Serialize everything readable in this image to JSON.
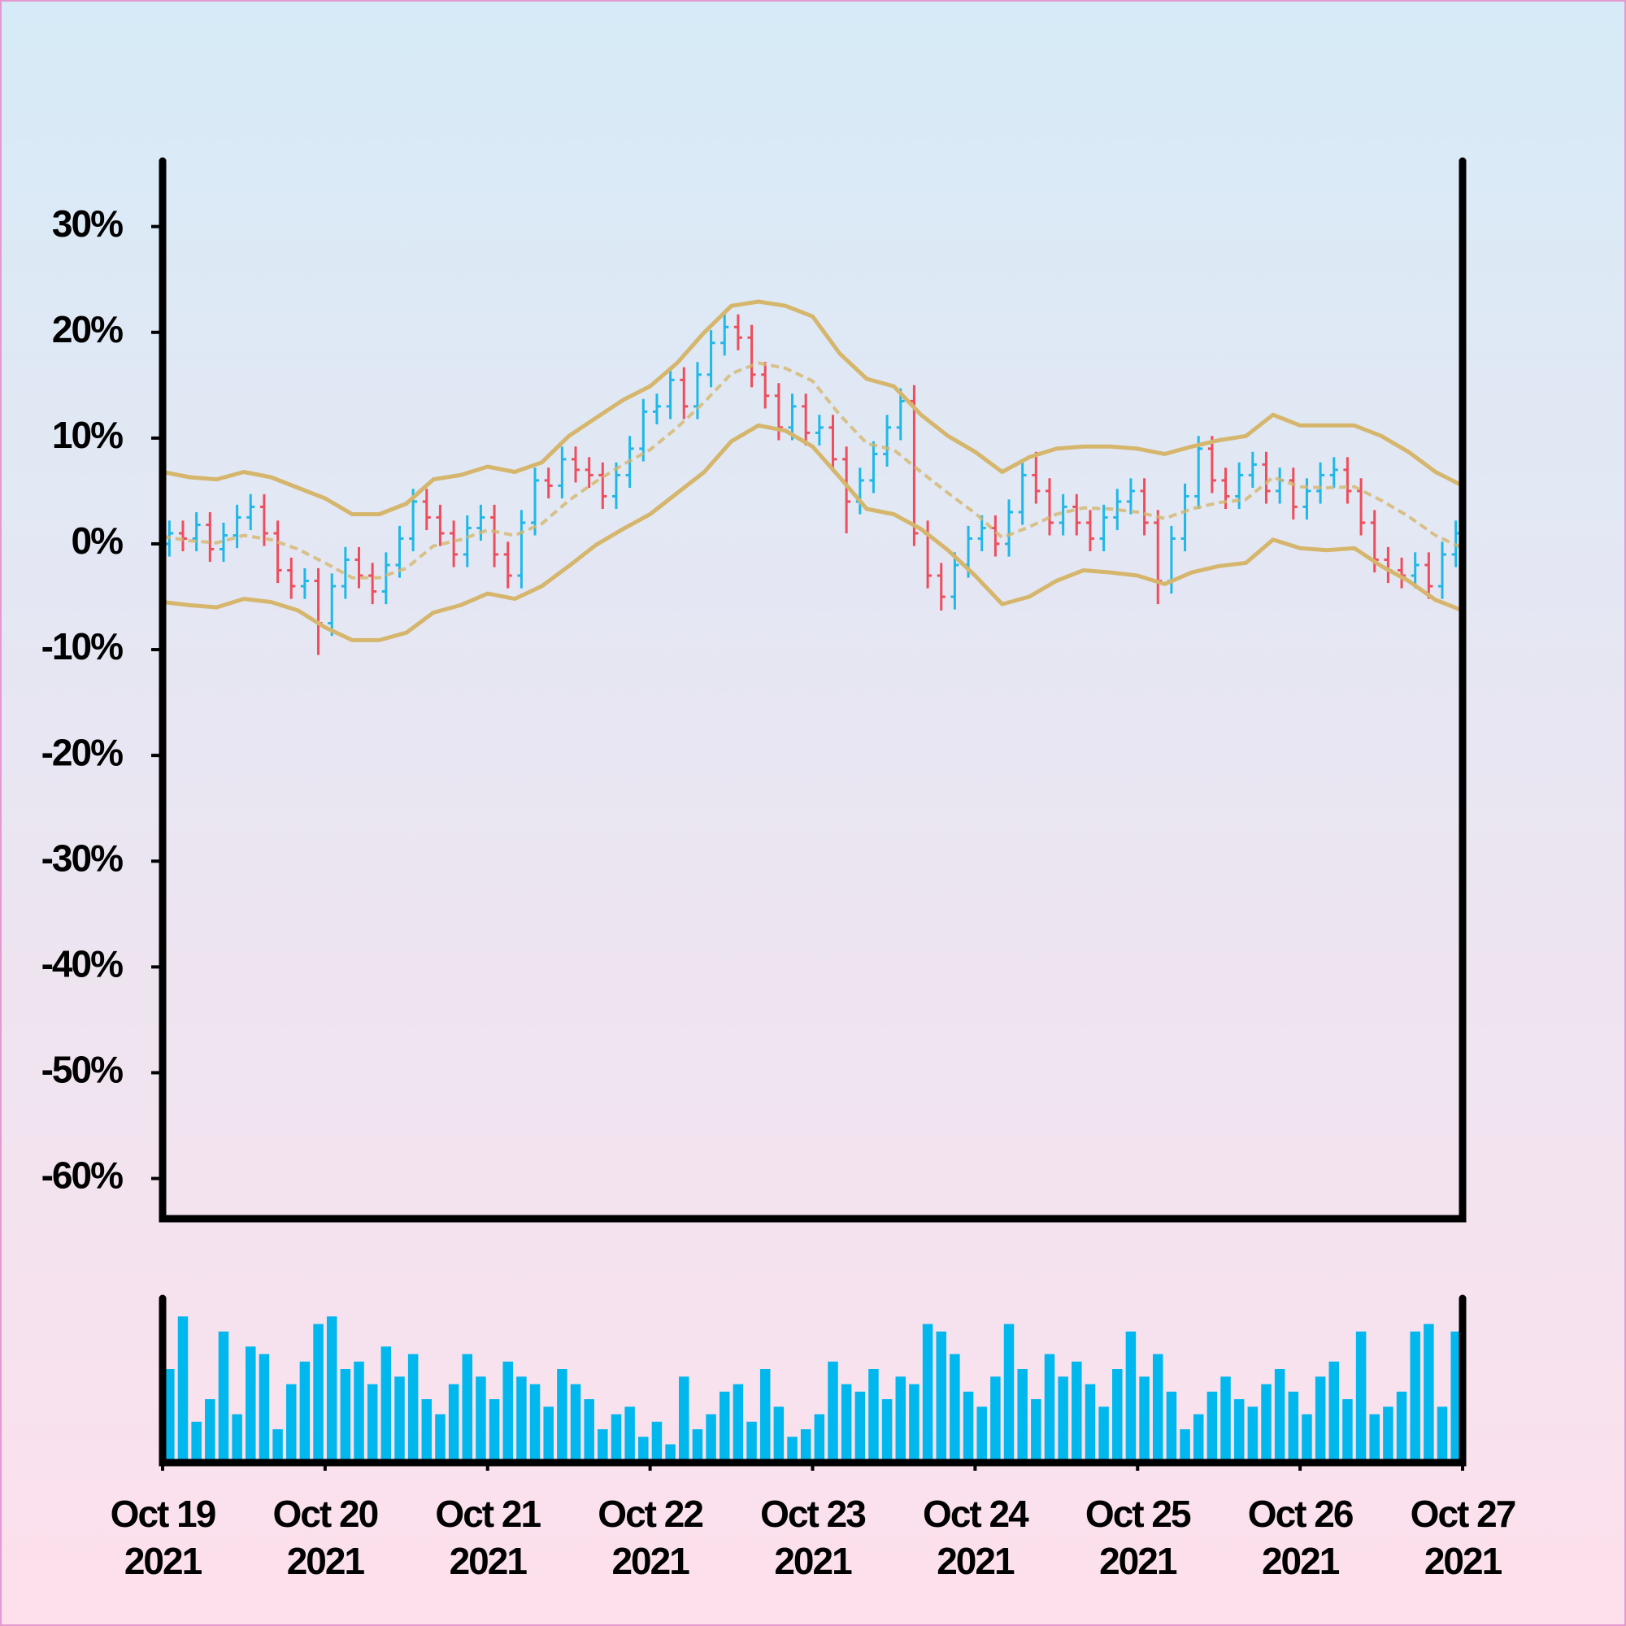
{
  "chart_data": {
    "type": "ohlc",
    "x": [
      "2021-10-19 01:00",
      "2021-10-19 03:00",
      "2021-10-19 05:00",
      "2021-10-19 07:00",
      "2021-10-19 09:00",
      "2021-10-19 11:00",
      "2021-10-19 13:00",
      "2021-10-19 15:00",
      "2021-10-19 17:00",
      "2021-10-19 19:00",
      "2021-10-19 21:00",
      "2021-10-19 23:00",
      "2021-10-20 01:00",
      "2021-10-20 03:00",
      "2021-10-20 05:00",
      "2021-10-20 07:00",
      "2021-10-20 09:00",
      "2021-10-20 11:00",
      "2021-10-20 13:00",
      "2021-10-20 15:00",
      "2021-10-20 17:00",
      "2021-10-20 19:00",
      "2021-10-20 21:00",
      "2021-10-20 23:00",
      "2021-10-21 01:00",
      "2021-10-21 03:00",
      "2021-10-21 05:00",
      "2021-10-21 07:00",
      "2021-10-21 09:00",
      "2021-10-21 11:00",
      "2021-10-21 13:00",
      "2021-10-21 15:00",
      "2021-10-21 17:00",
      "2021-10-21 19:00",
      "2021-10-21 21:00",
      "2021-10-21 23:00",
      "2021-10-22 01:00",
      "2021-10-22 03:00",
      "2021-10-22 05:00",
      "2021-10-22 07:00",
      "2021-10-22 09:00",
      "2021-10-22 11:00",
      "2021-10-22 13:00",
      "2021-10-22 15:00",
      "2021-10-22 17:00",
      "2021-10-22 19:00",
      "2021-10-22 21:00",
      "2021-10-22 23:00",
      "2021-10-23 01:00",
      "2021-10-23 03:00",
      "2021-10-23 05:00",
      "2021-10-23 07:00",
      "2021-10-23 09:00",
      "2021-10-23 11:00",
      "2021-10-23 13:00",
      "2021-10-23 15:00",
      "2021-10-23 17:00",
      "2021-10-23 19:00",
      "2021-10-23 21:00",
      "2021-10-23 23:00",
      "2021-10-24 01:00",
      "2021-10-24 03:00",
      "2021-10-24 05:00",
      "2021-10-24 07:00",
      "2021-10-24 09:00",
      "2021-10-24 11:00",
      "2021-10-24 13:00",
      "2021-10-24 15:00",
      "2021-10-24 17:00",
      "2021-10-24 19:00",
      "2021-10-24 21:00",
      "2021-10-24 23:00",
      "2021-10-25 01:00",
      "2021-10-25 03:00",
      "2021-10-25 05:00",
      "2021-10-25 07:00",
      "2021-10-25 09:00",
      "2021-10-25 11:00",
      "2021-10-25 13:00",
      "2021-10-25 15:00",
      "2021-10-25 17:00",
      "2021-10-25 19:00",
      "2021-10-25 21:00",
      "2021-10-25 23:00",
      "2021-10-26 01:00",
      "2021-10-26 03:00",
      "2021-10-26 05:00",
      "2021-10-26 07:00",
      "2021-10-26 09:00",
      "2021-10-26 11:00",
      "2021-10-26 13:00",
      "2021-10-26 15:00",
      "2021-10-26 17:00",
      "2021-10-26 19:00",
      "2021-10-26 21:00",
      "2021-10-26 23:00"
    ],
    "open": [
      0.0,
      1.0,
      0.5,
      1.8,
      -0.5,
      0.8,
      2.5,
      3.5,
      1.0,
      -2.5,
      -4.0,
      -3.5,
      -7.5,
      -4.0,
      -1.5,
      -3.0,
      -4.5,
      -2.0,
      0.5,
      4.0,
      2.5,
      1.0,
      -1.0,
      1.5,
      2.5,
      -1.0,
      -3.0,
      2.0,
      6.0,
      5.5,
      8.0,
      7.0,
      6.5,
      4.5,
      6.5,
      9.0,
      12.5,
      13.0,
      15.5,
      13.0,
      16.0,
      19.0,
      20.5,
      19.5,
      16.0,
      14.0,
      11.0,
      13.0,
      10.5,
      11.0,
      8.0,
      4.0,
      6.0,
      8.5,
      11.0,
      13.5,
      1.0,
      -3.0,
      -5.0,
      -2.0,
      0.5,
      1.5,
      0.0,
      3.0,
      6.5,
      5.0,
      2.0,
      3.5,
      2.0,
      0.5,
      2.5,
      4.0,
      5.0,
      2.0,
      -3.5,
      0.5,
      4.5,
      9.0,
      6.0,
      4.5,
      6.5,
      7.5,
      5.0,
      6.0,
      3.5,
      5.0,
      6.5,
      7.0,
      5.0,
      2.0,
      -1.5,
      -2.5,
      -3.0,
      -2.0,
      -4.0,
      -1.0
    ],
    "high": [
      2.2,
      2.2,
      3.0,
      3.0,
      2.0,
      3.7,
      4.7,
      4.7,
      2.2,
      -1.3,
      -2.3,
      -2.3,
      -2.8,
      -0.3,
      -0.3,
      -1.8,
      -0.8,
      1.7,
      5.2,
      5.2,
      3.7,
      2.2,
      2.7,
      3.7,
      3.7,
      0.2,
      3.2,
      7.2,
      7.2,
      9.2,
      9.2,
      8.2,
      7.7,
      7.7,
      10.2,
      13.7,
      14.2,
      16.7,
      16.7,
      17.2,
      20.2,
      21.7,
      21.7,
      20.7,
      17.2,
      15.2,
      14.2,
      14.2,
      12.2,
      12.2,
      9.2,
      7.2,
      9.7,
      12.2,
      14.7,
      15.0,
      2.2,
      -1.8,
      -0.8,
      1.7,
      2.7,
      2.7,
      4.2,
      7.7,
      8.7,
      6.2,
      4.7,
      4.7,
      3.2,
      3.7,
      5.2,
      6.2,
      6.2,
      3.2,
      1.7,
      5.7,
      10.2,
      10.2,
      7.2,
      7.7,
      8.7,
      8.7,
      7.2,
      7.2,
      6.2,
      7.7,
      8.2,
      8.2,
      6.2,
      3.2,
      -0.3,
      -1.3,
      -0.8,
      -0.8,
      0.2,
      2.2
    ],
    "low": [
      -1.2,
      -0.7,
      -0.7,
      -1.7,
      -1.7,
      -0.4,
      1.3,
      -0.2,
      -3.7,
      -5.2,
      -5.2,
      -10.5,
      -8.7,
      -5.2,
      -4.2,
      -5.7,
      -5.7,
      -3.2,
      -0.7,
      1.3,
      -0.2,
      -2.2,
      -2.2,
      0.3,
      -2.2,
      -4.2,
      -4.2,
      0.8,
      4.3,
      4.3,
      5.8,
      5.3,
      3.3,
      3.3,
      5.3,
      7.8,
      11.3,
      11.8,
      11.8,
      11.8,
      14.8,
      17.8,
      18.3,
      14.8,
      12.8,
      9.8,
      9.8,
      9.3,
      9.3,
      6.8,
      1.0,
      2.8,
      4.8,
      7.3,
      9.8,
      -0.2,
      -4.2,
      -6.3,
      -6.2,
      -3.2,
      -0.7,
      -1.2,
      -1.2,
      1.8,
      3.8,
      0.8,
      0.8,
      0.8,
      -0.7,
      -0.7,
      1.3,
      2.8,
      0.8,
      -5.7,
      -4.7,
      -0.7,
      3.3,
      4.8,
      3.3,
      3.3,
      5.3,
      3.8,
      3.8,
      2.3,
      2.3,
      3.8,
      5.3,
      3.8,
      0.8,
      -2.7,
      -3.7,
      -4.2,
      -4.2,
      -5.2,
      -5.2,
      -2.2
    ],
    "close": [
      1.0,
      0.5,
      1.8,
      -0.5,
      0.8,
      2.5,
      3.5,
      1.0,
      -2.5,
      -4.0,
      -3.5,
      -7.5,
      -4.0,
      -1.5,
      -3.0,
      -4.5,
      -2.0,
      0.5,
      4.0,
      2.5,
      1.0,
      -1.0,
      1.5,
      2.5,
      -1.0,
      -3.0,
      2.0,
      6.0,
      5.5,
      8.0,
      7.0,
      6.5,
      4.5,
      6.5,
      9.0,
      12.5,
      13.0,
      15.5,
      13.0,
      16.0,
      19.0,
      20.5,
      19.5,
      16.0,
      14.0,
      11.0,
      13.0,
      10.5,
      11.0,
      8.0,
      4.0,
      6.0,
      8.5,
      11.0,
      13.5,
      1.0,
      -3.0,
      -5.0,
      -2.0,
      0.5,
      1.5,
      0.0,
      3.0,
      6.5,
      5.0,
      2.0,
      3.5,
      2.0,
      0.5,
      2.5,
      4.0,
      5.0,
      2.0,
      -3.5,
      0.5,
      4.5,
      9.0,
      6.0,
      4.5,
      6.5,
      7.5,
      5.0,
      6.0,
      3.5,
      5.0,
      6.5,
      7.0,
      5.0,
      2.0,
      -1.5,
      -2.5,
      -3.0,
      -2.0,
      -4.0,
      -1.0,
      1.0
    ],
    "up_color": "#1fb8e8",
    "down_color": "#ef4d5c",
    "bands": {
      "color": "#d5b66c",
      "x": [
        "2021-10-19 00:00",
        "2021-10-19 04:00",
        "2021-10-19 08:00",
        "2021-10-19 12:00",
        "2021-10-19 16:00",
        "2021-10-19 20:00",
        "2021-10-20 00:00",
        "2021-10-20 04:00",
        "2021-10-20 08:00",
        "2021-10-20 12:00",
        "2021-10-20 16:00",
        "2021-10-20 20:00",
        "2021-10-21 00:00",
        "2021-10-21 04:00",
        "2021-10-21 08:00",
        "2021-10-21 12:00",
        "2021-10-21 16:00",
        "2021-10-21 20:00",
        "2021-10-22 00:00",
        "2021-10-22 04:00",
        "2021-10-22 08:00",
        "2021-10-22 12:00",
        "2021-10-22 16:00",
        "2021-10-22 20:00",
        "2021-10-23 00:00",
        "2021-10-23 04:00",
        "2021-10-23 08:00",
        "2021-10-23 12:00",
        "2021-10-23 16:00",
        "2021-10-23 20:00",
        "2021-10-24 00:00",
        "2021-10-24 04:00",
        "2021-10-24 08:00",
        "2021-10-24 12:00",
        "2021-10-24 16:00",
        "2021-10-24 20:00",
        "2021-10-25 00:00",
        "2021-10-25 04:00",
        "2021-10-25 08:00",
        "2021-10-25 12:00",
        "2021-10-25 16:00",
        "2021-10-25 20:00",
        "2021-10-26 00:00",
        "2021-10-26 04:00",
        "2021-10-26 08:00",
        "2021-10-26 12:00",
        "2021-10-26 16:00",
        "2021-10-26 20:00",
        "2021-10-27 00:00"
      ],
      "upper": [
        6.8,
        6.3,
        6.1,
        6.8,
        6.3,
        5.3,
        4.3,
        2.8,
        2.8,
        3.8,
        6.1,
        6.5,
        7.3,
        6.8,
        7.7,
        10.2,
        11.9,
        13.6,
        14.9,
        17.1,
        20.0,
        22.5,
        22.9,
        22.5,
        21.5,
        18.0,
        15.6,
        14.9,
        12.2,
        10.2,
        8.7,
        6.8,
        8.2,
        9.0,
        9.2,
        9.2,
        9.0,
        8.5,
        9.2,
        9.8,
        10.2,
        12.2,
        11.2,
        11.2,
        11.2,
        10.2,
        8.7,
        6.8,
        5.5
      ],
      "middle": [
        0.7,
        0.3,
        0.1,
        0.8,
        0.4,
        -0.5,
        -1.8,
        -3.2,
        -3.2,
        -2.3,
        -0.2,
        0.4,
        1.3,
        0.8,
        1.9,
        4.1,
        5.9,
        7.5,
        8.9,
        11.0,
        13.4,
        16.1,
        17.1,
        16.6,
        15.4,
        12.2,
        9.5,
        8.9,
        6.8,
        4.8,
        2.9,
        0.6,
        1.6,
        2.8,
        3.4,
        3.3,
        3.0,
        2.4,
        3.3,
        3.9,
        4.2,
        6.3,
        5.4,
        5.3,
        5.4,
        4.1,
        2.6,
        0.8,
        -0.4
      ],
      "lower": [
        -5.5,
        -5.8,
        -6.0,
        -5.2,
        -5.5,
        -6.3,
        -7.9,
        -9.1,
        -9.1,
        -8.4,
        -6.5,
        -5.8,
        -4.7,
        -5.2,
        -4.0,
        -2.1,
        -0.1,
        1.4,
        2.8,
        4.8,
        6.8,
        9.7,
        11.2,
        10.7,
        9.2,
        6.3,
        3.3,
        2.8,
        1.4,
        -0.6,
        -3.0,
        -5.7,
        -5.0,
        -3.5,
        -2.5,
        -2.7,
        -3.0,
        -3.8,
        -2.7,
        -2.1,
        -1.8,
        0.4,
        -0.4,
        -0.6,
        -0.4,
        -2.1,
        -3.5,
        -5.3,
        -6.3
      ]
    },
    "volume": {
      "color": "#00b8ee",
      "ylim": [
        0,
        100
      ],
      "values": [
        60,
        95,
        25,
        40,
        85,
        30,
        75,
        70,
        20,
        50,
        65,
        90,
        95,
        60,
        65,
        50,
        75,
        55,
        70,
        40,
        30,
        50,
        70,
        55,
        40,
        65,
        55,
        50,
        35,
        60,
        50,
        40,
        20,
        30,
        35,
        15,
        25,
        10,
        55,
        20,
        30,
        45,
        50,
        25,
        60,
        35,
        15,
        20,
        30,
        65,
        50,
        45,
        60,
        40,
        55,
        50,
        90,
        85,
        70,
        45,
        35,
        55,
        90,
        60,
        40,
        70,
        55,
        65,
        50,
        35,
        60,
        85,
        55,
        70,
        45,
        20,
        30,
        45,
        55,
        40,
        35,
        50,
        60,
        45,
        30,
        55,
        65,
        40,
        85,
        30,
        35,
        45,
        85,
        90,
        35,
        85
      ]
    },
    "ylim": [
      -63.8,
      36.2
    ],
    "yticks": [
      {
        "value": -60,
        "label": "-60%"
      },
      {
        "value": -50,
        "label": "-50%"
      },
      {
        "value": -40,
        "label": "-40%"
      },
      {
        "value": -30,
        "label": "-30%"
      },
      {
        "value": -20,
        "label": "-20%"
      },
      {
        "value": -10,
        "label": "-10%"
      },
      {
        "value": 0,
        "label": "0%"
      },
      {
        "value": 10,
        "label": "10%"
      },
      {
        "value": 20,
        "label": "20%"
      },
      {
        "value": 30,
        "label": "30%"
      }
    ],
    "xlim": [
      "2021-10-19",
      "2021-10-27"
    ],
    "xticks": [
      {
        "value": "2021-10-19",
        "label": [
          "Oct 19",
          "2021"
        ]
      },
      {
        "value": "2021-10-20",
        "label": [
          "Oct 20",
          "2021"
        ]
      },
      {
        "value": "2021-10-21",
        "label": [
          "Oct 21",
          "2021"
        ]
      },
      {
        "value": "2021-10-22",
        "label": [
          "Oct 22",
          "2021"
        ]
      },
      {
        "value": "2021-10-23",
        "label": [
          "Oct 23",
          "2021"
        ]
      },
      {
        "value": "2021-10-24",
        "label": [
          "Oct 24",
          "2021"
        ]
      },
      {
        "value": "2021-10-25",
        "label": [
          "Oct 25",
          "2021"
        ]
      },
      {
        "value": "2021-10-26",
        "label": [
          "Oct 26",
          "2021"
        ]
      },
      {
        "value": "2021-10-27",
        "label": [
          "Oct 27",
          "2021"
        ]
      }
    ]
  }
}
